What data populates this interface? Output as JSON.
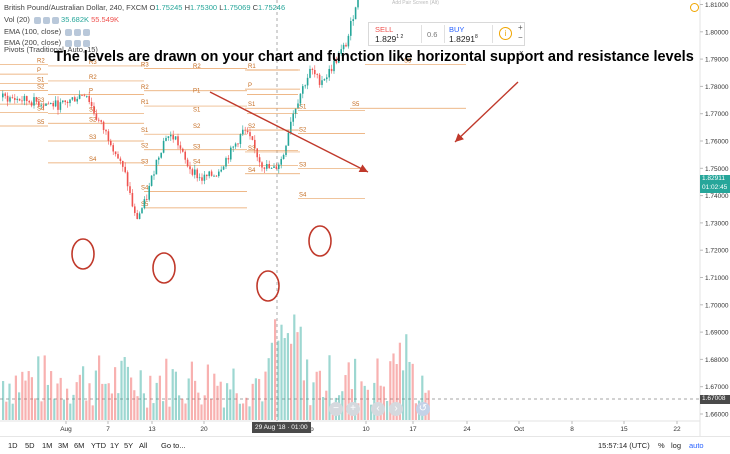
{
  "app": {
    "symbol_line": "British Pound/Australian Dollar, 240, FXCM",
    "ohlc": [
      {
        "label": "O",
        "value": "1.75245"
      },
      {
        "label": "H",
        "value": "1.75300"
      },
      {
        "label": "L",
        "value": "1.75069"
      },
      {
        "label": "C",
        "value": "1.75246"
      }
    ],
    "vol_label": "Vol (20)",
    "vol_values": [
      "35.682K",
      "55.549K"
    ],
    "ema1_label": "EMA (100, close)",
    "ema2_label": "EMA (200, close)",
    "pivots_label": "Pivots (Traditional, Auto, 15)"
  },
  "headline": "The levels are drawn on your chart and function like horizontal support and resistance levels",
  "trade_widget": {
    "sell_label": "SELL",
    "sell_price": "1.829",
    "sell_sup": "1 2",
    "spread": "0.6",
    "buy_label": "BUY",
    "buy_price": "1.8291",
    "buy_sup": "8",
    "info_icon": "i",
    "above_text": "Add Pair Screen (Alt)"
  },
  "price_axis": {
    "ticks": [
      "1.86000",
      "1.85000",
      "1.84000",
      "1.83000",
      "1.82000",
      "1.81000",
      "1.80000",
      "1.79000",
      "1.78000",
      "1.77000",
      "1.76000",
      "1.75000",
      "1.74000",
      "1.73000",
      "1.72000",
      "1.71000",
      "1.70000",
      "1.69000",
      "1.68000",
      "1.67000",
      "1.66000"
    ],
    "current_price": "1.82911",
    "countdown": "01:02:45",
    "crosshair_price": "1.67008"
  },
  "time_axis": {
    "ticks": [
      "Aug",
      "7",
      "13",
      "20",
      "Sep",
      "10",
      "17",
      "24",
      "Oct",
      "8",
      "15",
      "22"
    ],
    "crosshair_date": "29 Aug '18 · 01:00"
  },
  "bottom_bar": {
    "timeframes": [
      "1D",
      "5D",
      "1M",
      "3M",
      "6M",
      "YTD",
      "1Y",
      "5Y",
      "All"
    ],
    "goto": "Go to...",
    "clock": "15:57:14 (UTC)",
    "percent": "%",
    "log": "log",
    "auto": "auto"
  },
  "pivot_labels": {
    "p1": [
      "R5",
      "R4",
      "R3",
      "R2",
      "P",
      "S1",
      "S2",
      "S3",
      "S4",
      "S5"
    ],
    "p2": [
      "R4",
      "R3",
      "R2",
      "P",
      "S1",
      "S2",
      "S3",
      "S4"
    ],
    "p3": [
      "R5",
      "R4",
      "R3",
      "R2",
      "R1",
      "S1",
      "S2",
      "S3",
      "S4",
      "S5"
    ],
    "p4": [
      "R5",
      "R4",
      "R3",
      "R2",
      "P1",
      "S1",
      "S2",
      "S3",
      "S4"
    ],
    "p5": [
      "R5",
      "R4",
      "R3",
      "R2",
      "R1",
      "S1",
      "S2",
      "S3",
      "S4"
    ],
    "p6": [
      "R6",
      "R5",
      "R4",
      "R3",
      "R2",
      "R1",
      "S1",
      "S2",
      "S3",
      "S4",
      "S5"
    ]
  },
  "colors": {
    "up": "#26a69a",
    "down": "#ef5350",
    "pivot": "#e8a060",
    "pivot_text": "#c46a1e",
    "arrow": "#c0392b",
    "circle": "#c0392b",
    "current_tag": "#26a69a",
    "crosshair_tag": "#4a4a4a"
  }
}
